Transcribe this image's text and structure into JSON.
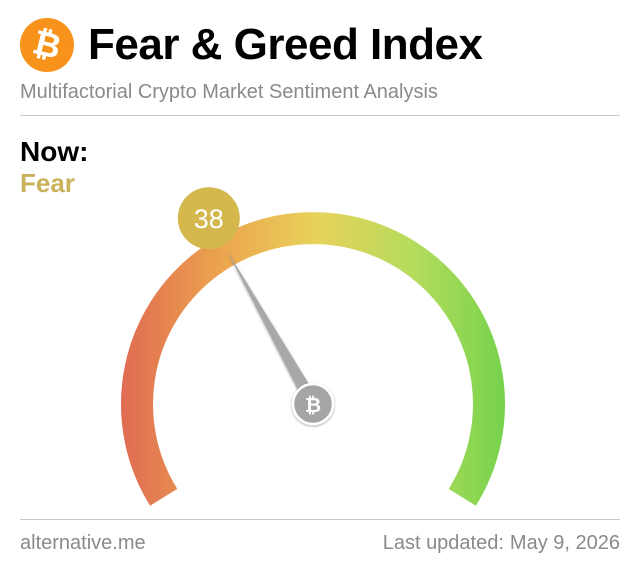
{
  "header": {
    "logo_icon": "bitcoin-icon",
    "logo_glyph": "₿",
    "title": "Fear & Greed Index",
    "subtitle": "Multifactorial Crypto Market Sentiment Analysis"
  },
  "now": {
    "label": "Now:",
    "classification": "Fear",
    "value": 38,
    "value_text": "38"
  },
  "gauge": {
    "min": 0,
    "max": 100,
    "center_icon": "bitcoin-icon",
    "center_glyph": "₿",
    "colors": {
      "extreme_fear": "#e06a52",
      "fear": "#eca94e",
      "neutral": "#e8d25c",
      "greed": "#b6dc5c",
      "extreme_greed": "#72d24c",
      "badge": "#d4b84e",
      "needle": "#a8a8a8"
    }
  },
  "footer": {
    "source": "alternative.me",
    "updated_label": "Last updated:",
    "updated_date": "May 9, 2026"
  }
}
